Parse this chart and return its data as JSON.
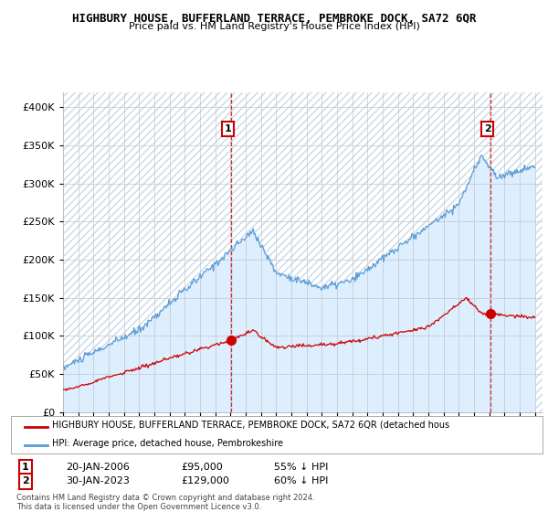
{
  "title": "HIGHBURY HOUSE, BUFFERLAND TERRACE, PEMBROKE DOCK, SA72 6QR",
  "subtitle": "Price paid vs. HM Land Registry's House Price Index (HPI)",
  "legend_line1": "HIGHBURY HOUSE, BUFFERLAND TERRACE, PEMBROKE DOCK, SA72 6QR (detached hous",
  "legend_line2": "HPI: Average price, detached house, Pembrokeshire",
  "annotation1_date": "20-JAN-2006",
  "annotation1_price": "£95,000",
  "annotation1_pct": "55% ↓ HPI",
  "annotation2_date": "30-JAN-2023",
  "annotation2_price": "£129,000",
  "annotation2_pct": "60% ↓ HPI",
  "footer": "Contains HM Land Registry data © Crown copyright and database right 2024.\nThis data is licensed under the Open Government Licence v3.0.",
  "red_color": "#cc0000",
  "blue_color": "#5b9bd5",
  "blue_fill": "#ddeeff",
  "background_color": "#ffffff",
  "grid_color": "#cccccc",
  "ylim": [
    0,
    420000
  ],
  "yticks": [
    0,
    50000,
    100000,
    150000,
    200000,
    250000,
    300000,
    350000,
    400000
  ],
  "sale1_x": 2006.05,
  "sale1_y": 95000,
  "sale2_x": 2023.08,
  "sale2_y": 129000,
  "xmin": 1995,
  "xmax": 2026.5
}
